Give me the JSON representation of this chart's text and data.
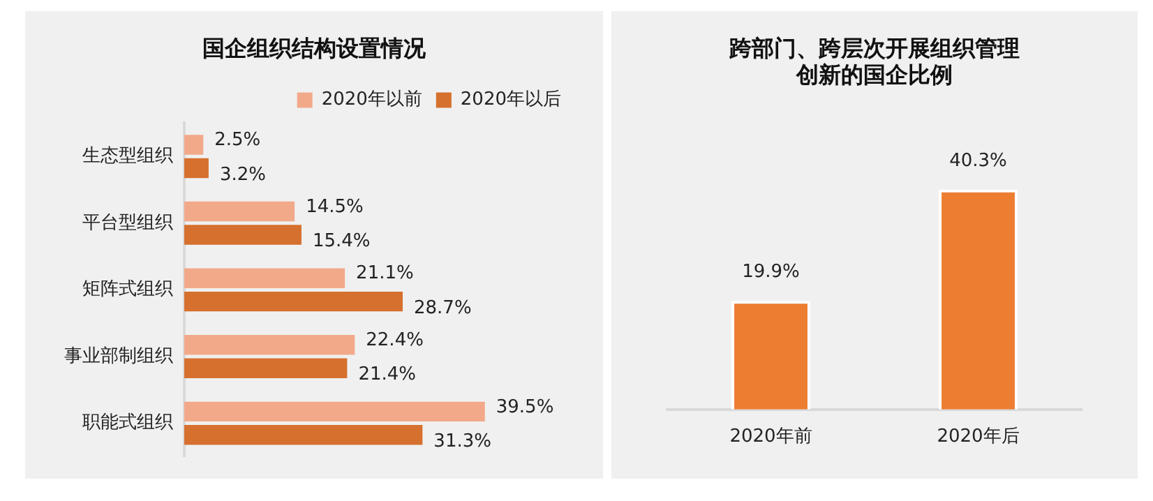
{
  "chart_data": [
    {
      "type": "bar",
      "orientation": "horizontal",
      "title": "国企组织结构设置情况",
      "categories": [
        "生态型组织",
        "平台型组织",
        "矩阵式组织",
        "事业部制组织",
        "职能式组织"
      ],
      "series": [
        {
          "name": "2020年以前",
          "color": "#f2a98a",
          "values": [
            2.5,
            14.5,
            21.1,
            22.4,
            39.5
          ],
          "value_labels": [
            "2.5%",
            "14.5%",
            "21.1%",
            "22.4%",
            "39.5%"
          ]
        },
        {
          "name": "2020年以后",
          "color": "#d6702e",
          "values": [
            3.2,
            15.4,
            28.7,
            21.4,
            31.3
          ],
          "value_labels": [
            "3.2%",
            "15.4%",
            "28.7%",
            "21.4%",
            "31.3%"
          ]
        }
      ],
      "legend": "top right"
    },
    {
      "type": "bar",
      "title": "跨部门、跨层次开展组织管理创新的国企比例",
      "categories": [
        "2020年前",
        "2020年后"
      ],
      "series": [
        {
          "color": "#ed7d31",
          "values": [
            19.9,
            40.3
          ],
          "value_labels": [
            "19.9%",
            "40.3%"
          ]
        }
      ],
      "legend": false
    }
  ]
}
